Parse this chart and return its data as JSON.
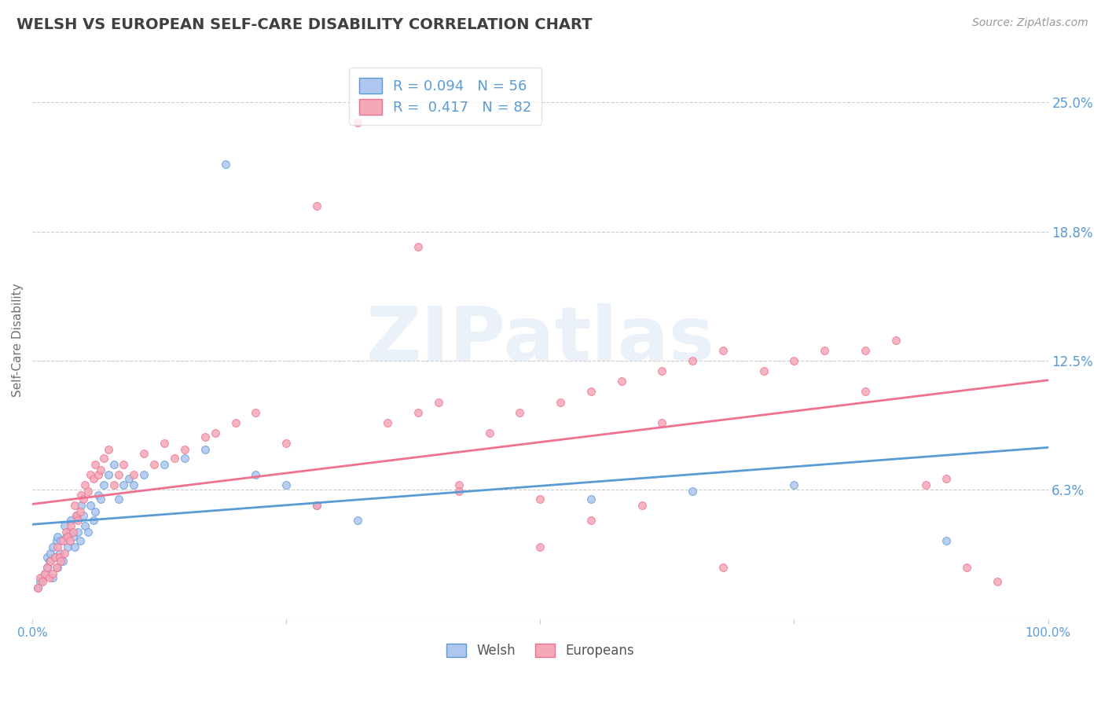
{
  "title": "WELSH VS EUROPEAN SELF-CARE DISABILITY CORRELATION CHART",
  "source": "Source: ZipAtlas.com",
  "ylabel": "Self-Care Disability",
  "xlim": [
    0.0,
    1.0
  ],
  "ylim": [
    0.0,
    0.27
  ],
  "yticks": [
    0.0,
    0.0625,
    0.125,
    0.1875,
    0.25
  ],
  "xticks": [
    0.0,
    0.25,
    0.5,
    0.75,
    1.0
  ],
  "xtick_labels": [
    "0.0%",
    "",
    "",
    "",
    "100.0%"
  ],
  "right_ytick_labels": [
    "25.0%",
    "18.8%",
    "12.5%",
    "6.3%"
  ],
  "right_ytick_values": [
    0.25,
    0.1875,
    0.125,
    0.0625
  ],
  "welsh_color": "#aec6f0",
  "european_color": "#f4a9b8",
  "welsh_line_color": "#5b9bd5",
  "european_line_color": "#f07090",
  "welsh_R": 0.094,
  "welsh_N": 56,
  "european_R": 0.417,
  "european_N": 82,
  "background_color": "#ffffff",
  "grid_color": "#cccccc",
  "title_color": "#404040",
  "axis_label_color": "#707070",
  "tick_label_color": "#5b9bd5",
  "watermark": "ZIPatlas",
  "welsh_scatter_x": [
    0.005,
    0.008,
    0.01,
    0.012,
    0.015,
    0.015,
    0.017,
    0.018,
    0.02,
    0.02,
    0.022,
    0.024,
    0.025,
    0.025,
    0.027,
    0.028,
    0.03,
    0.032,
    0.033,
    0.035,
    0.037,
    0.038,
    0.04,
    0.042,
    0.043,
    0.045,
    0.047,
    0.048,
    0.05,
    0.052,
    0.055,
    0.057,
    0.06,
    0.062,
    0.065,
    0.067,
    0.07,
    0.075,
    0.08,
    0.085,
    0.09,
    0.095,
    0.1,
    0.11,
    0.13,
    0.15,
    0.17,
    0.19,
    0.22,
    0.25,
    0.28,
    0.32,
    0.55,
    0.65,
    0.75,
    0.9
  ],
  "welsh_scatter_y": [
    0.015,
    0.018,
    0.02,
    0.022,
    0.025,
    0.03,
    0.028,
    0.032,
    0.02,
    0.035,
    0.03,
    0.038,
    0.025,
    0.04,
    0.032,
    0.038,
    0.028,
    0.045,
    0.04,
    0.035,
    0.042,
    0.048,
    0.04,
    0.035,
    0.05,
    0.042,
    0.038,
    0.055,
    0.05,
    0.045,
    0.042,
    0.055,
    0.048,
    0.052,
    0.06,
    0.058,
    0.065,
    0.07,
    0.075,
    0.058,
    0.065,
    0.068,
    0.065,
    0.07,
    0.075,
    0.078,
    0.082,
    0.22,
    0.07,
    0.065,
    0.055,
    0.048,
    0.058,
    0.062,
    0.065,
    0.038
  ],
  "european_scatter_x": [
    0.005,
    0.008,
    0.01,
    0.012,
    0.015,
    0.017,
    0.018,
    0.02,
    0.022,
    0.024,
    0.025,
    0.027,
    0.028,
    0.03,
    0.032,
    0.033,
    0.035,
    0.037,
    0.038,
    0.04,
    0.042,
    0.043,
    0.045,
    0.047,
    0.048,
    0.05,
    0.052,
    0.055,
    0.057,
    0.06,
    0.062,
    0.065,
    0.067,
    0.07,
    0.075,
    0.08,
    0.085,
    0.09,
    0.1,
    0.11,
    0.12,
    0.13,
    0.14,
    0.15,
    0.17,
    0.18,
    0.2,
    0.22,
    0.25,
    0.28,
    0.32,
    0.35,
    0.38,
    0.4,
    0.42,
    0.45,
    0.48,
    0.5,
    0.52,
    0.55,
    0.58,
    0.62,
    0.65,
    0.68,
    0.72,
    0.75,
    0.78,
    0.82,
    0.85,
    0.88,
    0.9,
    0.92,
    0.95,
    0.55,
    0.6,
    0.38,
    0.28,
    0.42,
    0.68,
    0.82,
    0.5,
    0.62
  ],
  "european_scatter_y": [
    0.015,
    0.02,
    0.018,
    0.022,
    0.025,
    0.02,
    0.028,
    0.022,
    0.03,
    0.025,
    0.035,
    0.03,
    0.028,
    0.038,
    0.032,
    0.042,
    0.04,
    0.038,
    0.045,
    0.042,
    0.055,
    0.05,
    0.048,
    0.052,
    0.06,
    0.058,
    0.065,
    0.062,
    0.07,
    0.068,
    0.075,
    0.07,
    0.072,
    0.078,
    0.082,
    0.065,
    0.07,
    0.075,
    0.07,
    0.08,
    0.075,
    0.085,
    0.078,
    0.082,
    0.088,
    0.09,
    0.095,
    0.1,
    0.085,
    0.2,
    0.24,
    0.095,
    0.1,
    0.105,
    0.065,
    0.09,
    0.1,
    0.035,
    0.105,
    0.11,
    0.115,
    0.12,
    0.125,
    0.13,
    0.12,
    0.125,
    0.13,
    0.13,
    0.135,
    0.065,
    0.068,
    0.025,
    0.018,
    0.048,
    0.055,
    0.18,
    0.055,
    0.062,
    0.025,
    0.11,
    0.058,
    0.095
  ]
}
